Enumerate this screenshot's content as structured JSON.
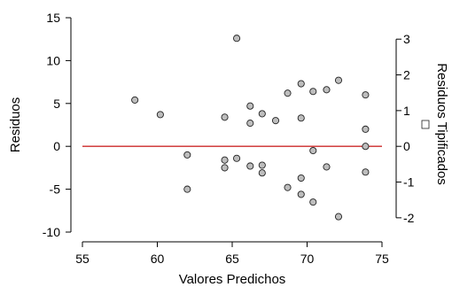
{
  "chart_data": {
    "type": "scatter",
    "xlabel": "Valores Predichos",
    "ylabel": "Residuos",
    "y2label": "Residuos Tipificados",
    "xlim": [
      55,
      75
    ],
    "ylim": [
      -10,
      15
    ],
    "y2lim": [
      -2,
      3
    ],
    "xticks": [
      55,
      60,
      65,
      70,
      75
    ],
    "yticks": [
      -10,
      -5,
      0,
      5,
      10,
      15
    ],
    "y2ticks": [
      -2,
      -1,
      0,
      1,
      2,
      3
    ],
    "grid": false,
    "legend": "none",
    "reference_line": {
      "y": 0,
      "color": "#cc2a2a"
    },
    "marker_fill": "#bdbdbd",
    "marker_stroke": "#222222",
    "points": [
      {
        "x": 58.5,
        "y": 5.4
      },
      {
        "x": 60.2,
        "y": 3.7
      },
      {
        "x": 62.0,
        "y": -1.0
      },
      {
        "x": 62.0,
        "y": -5.0
      },
      {
        "x": 64.5,
        "y": 3.4
      },
      {
        "x": 64.5,
        "y": -1.6
      },
      {
        "x": 64.5,
        "y": -2.5
      },
      {
        "x": 65.3,
        "y": 12.6
      },
      {
        "x": 65.3,
        "y": -1.4
      },
      {
        "x": 66.2,
        "y": 4.7
      },
      {
        "x": 66.2,
        "y": 2.7
      },
      {
        "x": 66.2,
        "y": -2.3
      },
      {
        "x": 67.0,
        "y": 3.8
      },
      {
        "x": 67.0,
        "y": -2.2
      },
      {
        "x": 67.0,
        "y": -3.1
      },
      {
        "x": 67.9,
        "y": 3.0
      },
      {
        "x": 68.7,
        "y": 6.2
      },
      {
        "x": 68.7,
        "y": -4.8
      },
      {
        "x": 69.6,
        "y": 7.3
      },
      {
        "x": 69.6,
        "y": 3.3
      },
      {
        "x": 69.6,
        "y": -3.7
      },
      {
        "x": 69.6,
        "y": -5.6
      },
      {
        "x": 70.4,
        "y": 6.4
      },
      {
        "x": 70.4,
        "y": -0.5
      },
      {
        "x": 70.4,
        "y": -6.5
      },
      {
        "x": 71.3,
        "y": 6.6
      },
      {
        "x": 71.3,
        "y": -2.4
      },
      {
        "x": 72.1,
        "y": 7.7
      },
      {
        "x": 72.1,
        "y": -8.2
      },
      {
        "x": 73.9,
        "y": 6.0
      },
      {
        "x": 73.9,
        "y": 2.0
      },
      {
        "x": 73.9,
        "y": 0.0
      },
      {
        "x": 73.9,
        "y": -3.0
      }
    ]
  }
}
